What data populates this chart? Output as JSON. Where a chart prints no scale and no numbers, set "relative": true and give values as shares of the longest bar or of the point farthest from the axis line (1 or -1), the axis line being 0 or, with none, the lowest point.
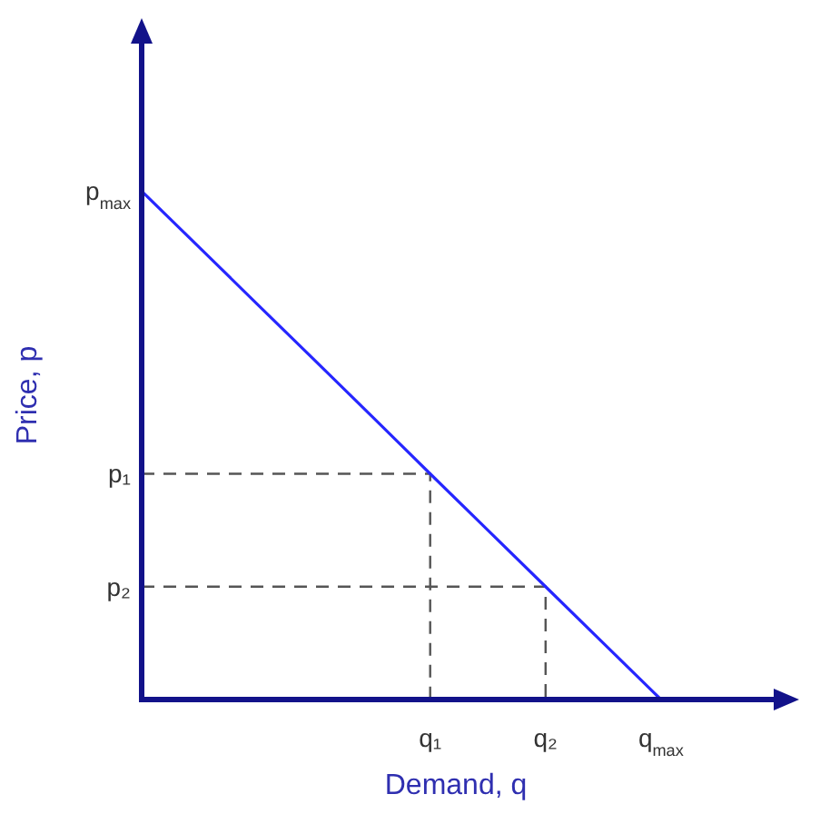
{
  "chart_data": {
    "type": "line",
    "xlabel": "Demand, q",
    "ylabel": "Price, p",
    "relative": true,
    "categories": [
      null,
      null,
      null,
      null,
      null,
      "q₁",
      null,
      "q₂",
      null,
      "q$_{max}$"
    ],
    "series": [
      {
        "color": "#2626ff",
        "values": [
          1,
          0.889,
          0.778,
          0.667,
          0.556,
          0.444,
          0.333,
          0.222,
          0.111,
          0
        ],
        "line_style": "solid"
      }
    ],
    "ref_lines": [
      {
        "axis": "y",
        "value": 0.444,
        "label": "p₁",
        "color": "#555555",
        "line_style": "dashed"
      },
      {
        "axis": "y",
        "value": 0.222,
        "label": "p₂",
        "color": "#555555",
        "line_style": "dashed"
      }
    ],
    "annotations": [
      "p$_{max}$"
    ],
    "marker": "none"
  }
}
